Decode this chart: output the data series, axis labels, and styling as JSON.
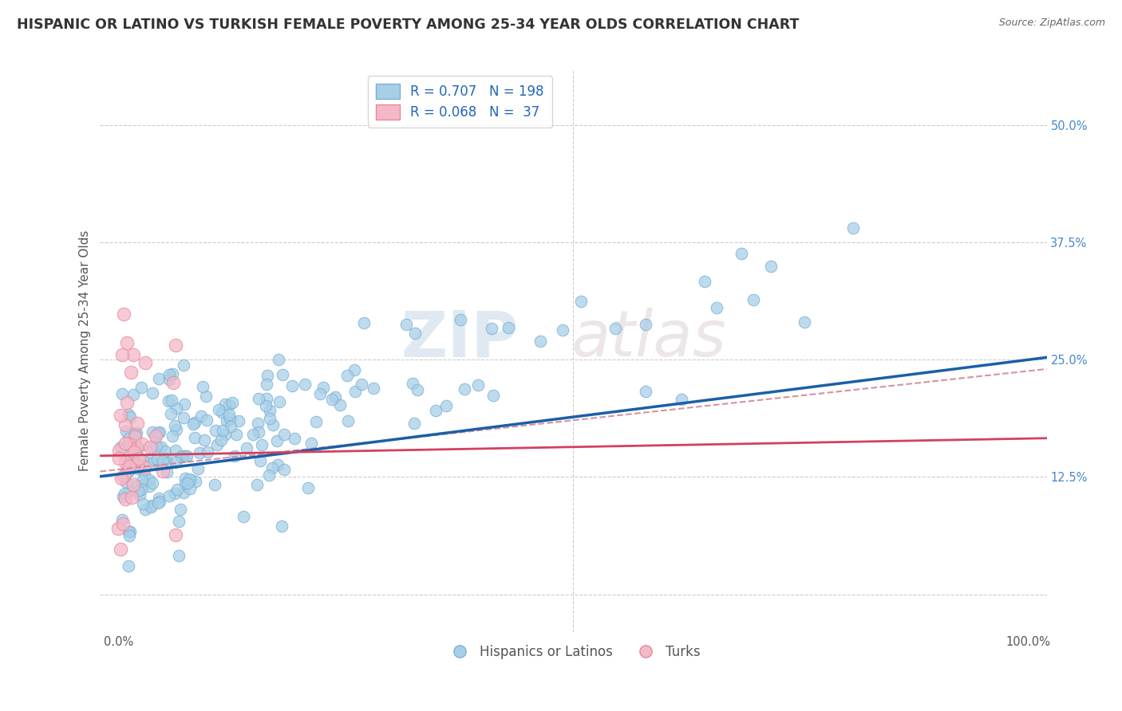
{
  "title": "HISPANIC OR LATINO VS TURKISH FEMALE POVERTY AMONG 25-34 YEAR OLDS CORRELATION CHART",
  "source": "Source: ZipAtlas.com",
  "ylabel": "Female Poverty Among 25-34 Year Olds",
  "xlim": [
    -0.02,
    1.02
  ],
  "ylim": [
    -0.04,
    0.56
  ],
  "xticks": [
    0.0,
    0.125,
    0.25,
    0.375,
    0.5,
    0.625,
    0.75,
    0.875,
    1.0
  ],
  "xticklabels": [
    "0.0%",
    "",
    "",
    "",
    "",
    "",
    "",
    "",
    "100.0%"
  ],
  "yticks": [
    0.0,
    0.125,
    0.25,
    0.375,
    0.5
  ],
  "yticklabels": [
    "",
    "12.5%",
    "25.0%",
    "37.5%",
    "50.0%"
  ],
  "blue_R": 0.707,
  "blue_N": 198,
  "pink_R": 0.068,
  "pink_N": 37,
  "blue_color": "#a8cfe8",
  "pink_color": "#f4b8c8",
  "blue_edge_color": "#7ab0d4",
  "pink_edge_color": "#e8889a",
  "blue_line_color": "#1a5fa8",
  "pink_line_color": "#d44060",
  "dashed_line_color": "#cc8899",
  "legend_label_blue": "Hispanics or Latinos",
  "legend_label_pink": "Turks",
  "background_color": "#ffffff",
  "grid_color": "#cccccc",
  "title_color": "#333333",
  "watermark_color": "#d0dde8",
  "watermark_pink": "#e8d0d8",
  "title_fontsize": 12.5,
  "axis_label_fontsize": 11,
  "tick_fontsize": 10.5,
  "legend_fontsize": 12,
  "blue_intercept": 0.128,
  "blue_slope": 0.122,
  "pink_intercept": 0.148,
  "pink_slope": 0.018,
  "dashed_intercept": 0.133,
  "dashed_slope": 0.105
}
